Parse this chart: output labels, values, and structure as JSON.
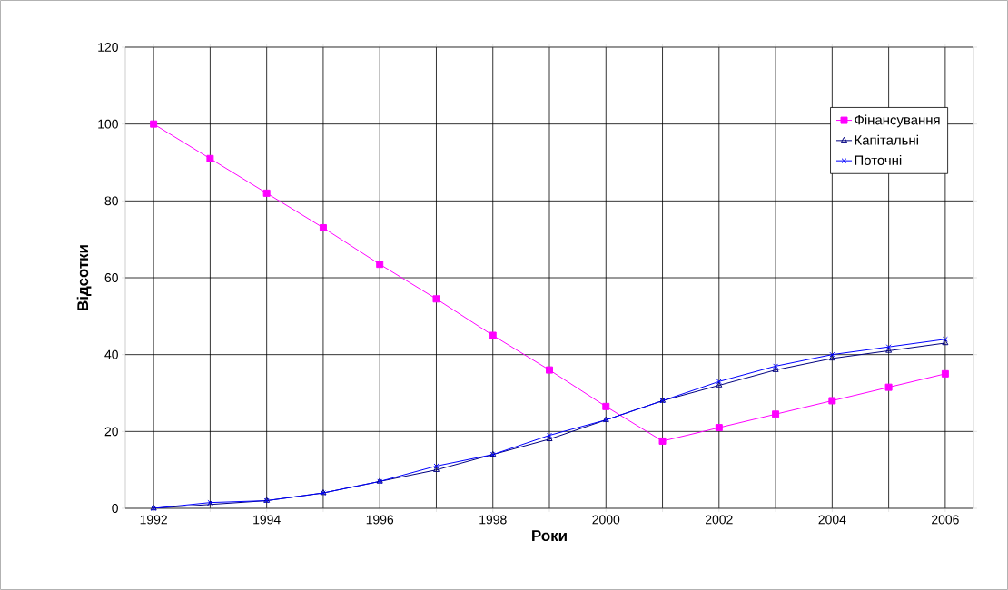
{
  "chart_data": {
    "type": "line",
    "xlabel": "Роки",
    "ylabel": "Відсотки",
    "categories": [
      "1992",
      null,
      "1994",
      null,
      "1996",
      null,
      "1998",
      null,
      "2000",
      null,
      "2002",
      null,
      "2004",
      null,
      "2006"
    ],
    "series": [
      {
        "name": "Фінансування",
        "color": "#ff00ff",
        "marker": "square",
        "values": [
          100,
          91,
          82,
          73,
          63.5,
          54.5,
          45,
          36,
          26.5,
          17.5,
          21,
          24.5,
          28,
          31.5,
          35
        ]
      },
      {
        "name": "Капітальні",
        "color": "#000080",
        "marker": "triangle",
        "values": [
          0,
          1,
          2,
          4,
          7,
          10,
          14,
          18,
          23,
          28,
          32,
          36,
          39,
          41,
          43
        ]
      },
      {
        "name": "Поточні",
        "color": "#0000ff",
        "marker": "cross",
        "values": [
          0,
          1.5,
          2,
          4,
          7,
          11,
          14,
          19,
          23,
          28,
          33,
          37,
          40,
          42,
          44
        ]
      }
    ],
    "ylim": [
      0,
      120
    ],
    "yticks": [
      0,
      20,
      40,
      60,
      80,
      100,
      120
    ],
    "grid": true,
    "legend": "top right"
  }
}
